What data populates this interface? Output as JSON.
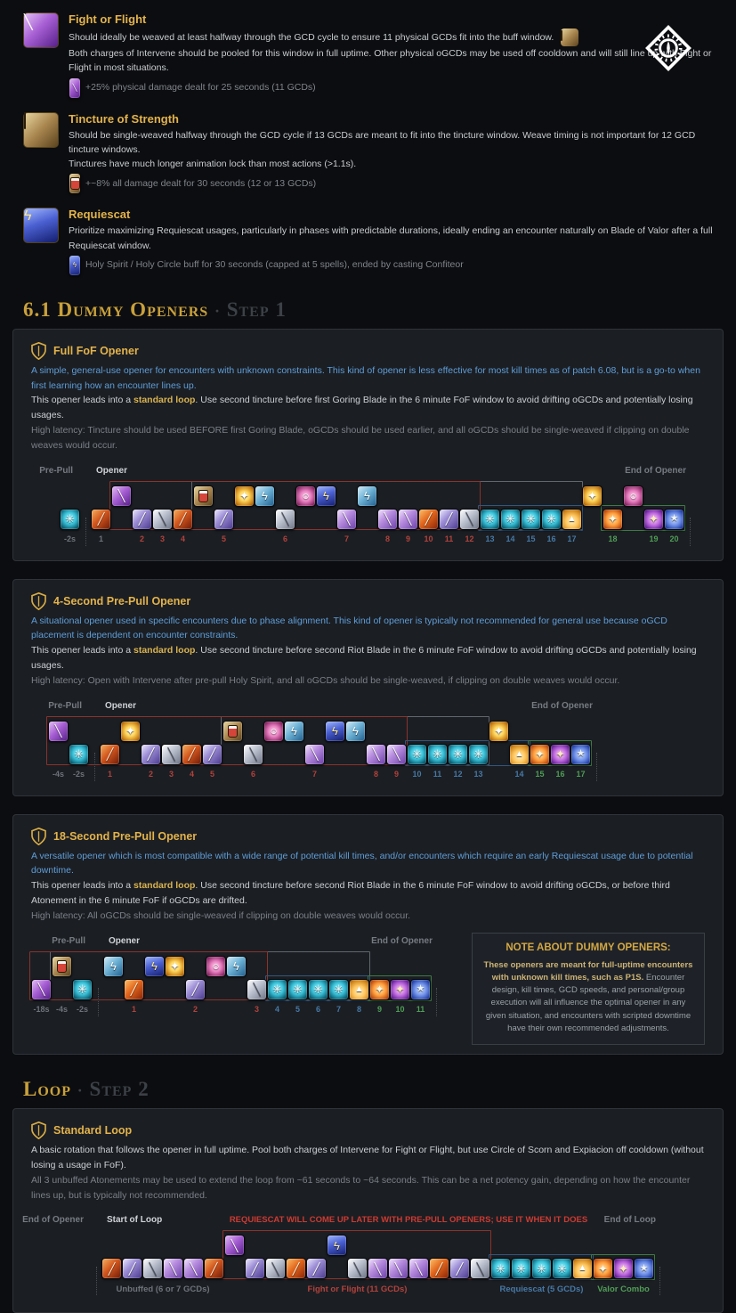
{
  "colors": {
    "red": "#b2423b",
    "blue": "#4679a6",
    "green": "#4f9e55",
    "gray": "#6e737a"
  },
  "abilities": [
    {
      "title": "Fight or Flight",
      "line1": "Should ideally be weaved at least halfway through the GCD cycle to ensure 11 physical GCDs fit into the buff window.",
      "line2": "Both charges of Intervene should be pooled for this window in full uptime. Other physical oGCDs may be used off cooldown and will still line up with Fight or Flight in most situations.",
      "buff": "+25% physical damage dealt for 25 seconds (11 GCDs)"
    },
    {
      "title": "Tincture of Strength",
      "line1": "Should be single-weaved halfway through the GCD cycle if 13 GCDs are meant to fit into the tincture window. Weave timing is not important for 12 GCD tincture windows.",
      "line2": "Tinctures have much longer animation lock than most actions (>1.1s).",
      "buff": "+~8% all damage dealt for 30 seconds (12 or 13 GCDs)"
    },
    {
      "title": "Requiescat",
      "line1": "Prioritize maximizing Requiescat usages, particularly in phases with predictable durations, ideally ending an encounter naturally on Blade of Valor after a full Requiescat window.",
      "buff": "Holy Spirit / Holy Circle buff for 30 seconds (capped at 5 spells), ended by casting Confiteor"
    }
  ],
  "sections": {
    "openers": {
      "num": "6.1 ",
      "title": "Dummy Openers",
      "sep": "·",
      "step": "Step 1"
    },
    "loop": {
      "title": "Loop",
      "sep": "·",
      "step": "Step 2"
    }
  },
  "cards": [
    {
      "title": "Full FoF Opener",
      "blue": "A simple, general-use opener for encounters with unknown constraints. This kind of opener is less effective for most kill times as of patch 6.08, but is a go-to when first learning how an encounter lines up.",
      "white_pre": "This opener leads into a ",
      "link": "standard loop",
      "white_post": ". Use second tincture before first Goring Blade in the 6 minute FoF window to avoid drifting oGCDs and potentially losing usages.",
      "gray": "High latency: Tincture should be used BEFORE first Goring Blade, oGCDs should be used earlier, and all oGCDs should be single-weaved if clipping on double weaves would occur."
    },
    {
      "title": "4-Second Pre-Pull Opener",
      "blue": "A situational opener used in specific encounters due to phase alignment. This kind of opener is typically not recommended for general use because oGCD placement is dependent on encounter constraints.",
      "white_pre": "This opener leads into a ",
      "link": "standard loop",
      "white_post": ". Use second tincture before second Riot Blade in the 6 minute FoF window to avoid drifting oGCDs and potentially losing usages.",
      "gray": "High latency: Open with Intervene after pre-pull Holy Spirit, and all oGCDs should be single-weaved, if clipping on double weaves would occur."
    },
    {
      "title": "18-Second Pre-Pull Opener",
      "blue": "A versatile opener which is most compatible with a wide range of potential kill times, and/or encounters which require an early Requiescat usage due to potential downtime.",
      "white_pre": "This opener leads into a ",
      "link": "standard loop",
      "white_post": ". Use second tincture before second Riot Blade in the 6 minute FoF window to avoid drifting oGCDs, or before third Atonement in the 6 minute FoF if oGCDs are drifted.",
      "gray": "High latency: All oGCDs should be single-weaved if clipping on double weaves would occur."
    }
  ],
  "note": {
    "title": "NOTE ABOUT DUMMY OPENERS:",
    "bold": "These openers are meant for full-uptime encounters with unknown kill times, such as P1S.",
    "rest": " Encounter design, kill times, GCD speeds, and personal/group execution will all influence the optimal opener in any given situation, and encounters with scripted downtime have their own recommended adjustments."
  },
  "loop_card": {
    "title": "Standard Loop",
    "white": "A basic rotation that follows the opener in full uptime. Pool both charges of Intervene for Fight or Flight, but use Circle of Scorn and Expiacion off cooldown (without losing a usage in FoF).",
    "gray": "All 3 unbuffed Atonements may be used to extend the loop from ~61 seconds to ~64 seconds. This can be a net potency gain, depending on how the encounter lines up, but is typically not recommended."
  },
  "timelines": [
    {
      "labels": {
        "pre": "Pre-Pull",
        "main": "Opener",
        "end": "End of Opener"
      },
      "slots": [
        [
          "g",
          "holy-spirit",
          "-2s",
          "gray"
        ],
        [
          "x"
        ],
        [
          "g",
          "fast-blade",
          "1",
          "gray"
        ],
        [
          "w",
          "fight-or-flight"
        ],
        [
          "g",
          "riot-blade",
          "2",
          "red"
        ],
        [
          "g",
          "royal-authority",
          "3",
          "red"
        ],
        [
          "g",
          "fast-blade",
          "4",
          "red"
        ],
        [
          "w",
          "tincture"
        ],
        [
          "g",
          "riot-blade",
          "5",
          "red"
        ],
        [
          "w",
          "expiacion"
        ],
        [
          "w",
          "intervene"
        ],
        [
          "g",
          "royal-authority",
          "6",
          "red"
        ],
        [
          "w",
          "circle-of-scorn"
        ],
        [
          "w",
          "requiescat"
        ],
        [
          "g",
          "atonement",
          "7",
          "red"
        ],
        [
          "w",
          "intervene"
        ],
        [
          "g",
          "atonement",
          "8",
          "red"
        ],
        [
          "g",
          "atonement",
          "9",
          "red"
        ],
        [
          "g",
          "goring-blade",
          "10",
          "red"
        ],
        [
          "g",
          "riot-blade",
          "11",
          "red"
        ],
        [
          "g",
          "royal-authority",
          "12",
          "red"
        ],
        [
          "g",
          "holy-spirit",
          "13",
          "blue"
        ],
        [
          "g",
          "holy-spirit",
          "14",
          "blue"
        ],
        [
          "g",
          "holy-spirit",
          "15",
          "blue"
        ],
        [
          "g",
          "holy-spirit",
          "16",
          "blue"
        ],
        [
          "g",
          "confiteor",
          "17",
          "blue"
        ],
        [
          "w",
          "expiacion"
        ],
        [
          "g",
          "blade-of-faith",
          "18",
          "green"
        ],
        [
          "w",
          "circle-of-scorn"
        ],
        [
          "g",
          "blade-of-truth",
          "19",
          "green"
        ],
        [
          "g",
          "blade-of-valor",
          "20",
          "green"
        ],
        [
          "x"
        ]
      ],
      "boxes": [
        {
          "from": 7,
          "to": 25,
          "color": "#61666d",
          "tall": true
        },
        {
          "from": 3,
          "to": 20,
          "color": "#8a332a",
          "tall": true
        },
        {
          "from": 21,
          "to": 25,
          "color": "#33567e",
          "tall": false
        },
        {
          "from": 27,
          "to": 30,
          "color": "#3e7a44",
          "tall": false
        }
      ]
    },
    {
      "labels": {
        "pre": "Pre-Pull",
        "main": "Opener",
        "end": "End of Opener"
      },
      "slots": [
        [
          "w",
          "fight-or-flight",
          "-4s",
          "gray"
        ],
        [
          "g",
          "holy-spirit",
          "-2s",
          "gray"
        ],
        [
          "x"
        ],
        [
          "g",
          "fast-blade",
          "1",
          "red"
        ],
        [
          "w",
          "expiacion"
        ],
        [
          "g",
          "riot-blade",
          "2",
          "red"
        ],
        [
          "g",
          "royal-authority",
          "3",
          "red"
        ],
        [
          "g",
          "fast-blade",
          "4",
          "red"
        ],
        [
          "g",
          "riot-blade",
          "5",
          "red"
        ],
        [
          "w",
          "tincture"
        ],
        [
          "g",
          "royal-authority",
          "6",
          "red"
        ],
        [
          "w",
          "circle-of-scorn"
        ],
        [
          "w",
          "intervene"
        ],
        [
          "g",
          "atonement",
          "7",
          "red"
        ],
        [
          "w",
          "requiescat"
        ],
        [
          "w",
          "intervene"
        ],
        [
          "g",
          "atonement",
          "8",
          "red"
        ],
        [
          "g",
          "atonement",
          "9",
          "red"
        ],
        [
          "g",
          "holy-spirit",
          "10",
          "blue"
        ],
        [
          "g",
          "holy-spirit",
          "11",
          "blue"
        ],
        [
          "g",
          "holy-spirit",
          "12",
          "blue"
        ],
        [
          "g",
          "holy-spirit",
          "13",
          "blue"
        ],
        [
          "w",
          "expiacion"
        ],
        [
          "g",
          "confiteor",
          "14",
          "blue"
        ],
        [
          "g",
          "blade-of-faith",
          "15",
          "green"
        ],
        [
          "g",
          "blade-of-truth",
          "16",
          "green"
        ],
        [
          "g",
          "blade-of-valor",
          "17",
          "green"
        ],
        [
          "x"
        ]
      ],
      "boxes": [
        {
          "from": 9,
          "to": 21,
          "color": "#61666d",
          "tall": true
        },
        {
          "from": 0,
          "to": 17,
          "color": "#8a332a",
          "tall": true
        },
        {
          "from": 18,
          "to": 23,
          "color": "#33567e",
          "tall": false
        },
        {
          "from": 24,
          "to": 26,
          "color": "#3e7a44",
          "tall": false
        }
      ]
    },
    {
      "labels": {
        "pre": "Pre-Pull",
        "main": "Opener",
        "end": "End of Opener"
      },
      "slots": [
        [
          "g",
          "fight-or-flight",
          "-18s",
          "gray"
        ],
        [
          "w",
          "tincture",
          "-4s",
          "gray"
        ],
        [
          "g",
          "holy-spirit",
          "-2s",
          "gray"
        ],
        [
          "x"
        ],
        [
          "w",
          "intervene"
        ],
        [
          "g",
          "goring-blade",
          "1",
          "red"
        ],
        [
          "w",
          "requiescat"
        ],
        [
          "w",
          "expiacion"
        ],
        [
          "g",
          "riot-blade",
          "2",
          "red"
        ],
        [
          "w",
          "circle-of-scorn"
        ],
        [
          "w",
          "intervene"
        ],
        [
          "g",
          "royal-authority",
          "3",
          "red"
        ],
        [
          "g",
          "holy-spirit",
          "4",
          "blue"
        ],
        [
          "g",
          "holy-spirit",
          "5",
          "blue"
        ],
        [
          "g",
          "holy-spirit",
          "6",
          "blue"
        ],
        [
          "g",
          "holy-spirit",
          "7",
          "blue"
        ],
        [
          "g",
          "confiteor",
          "8",
          "blue"
        ],
        [
          "g",
          "blade-of-faith",
          "9",
          "green"
        ],
        [
          "g",
          "blade-of-truth",
          "10",
          "green"
        ],
        [
          "g",
          "blade-of-valor",
          "11",
          "green"
        ],
        [
          "x"
        ]
      ],
      "boxes": [
        {
          "from": 1,
          "to": 16,
          "color": "#61666d",
          "tall": true
        },
        {
          "from": 0,
          "to": 11,
          "color": "#8a332a",
          "tall": true
        },
        {
          "from": 12,
          "to": 16,
          "color": "#33567e",
          "tall": false
        },
        {
          "from": 17,
          "to": 19,
          "color": "#3e7a44",
          "tall": false
        }
      ]
    },
    {
      "labels": {
        "pre": "End of Opener",
        "main": "Start of Loop",
        "end": "End of Loop"
      },
      "warning": "REQUIESCAT WILL COME UP LATER WITH PRE-PULL OPENERS; USE IT WHEN IT DOES",
      "slots": [
        [
          "x"
        ],
        [
          "g",
          "fast-blade"
        ],
        [
          "g",
          "riot-blade"
        ],
        [
          "g",
          "royal-authority"
        ],
        [
          "g",
          "atonement"
        ],
        [
          "g",
          "atonement"
        ],
        [
          "g",
          "fast-blade"
        ],
        [
          "w",
          "fight-or-flight"
        ],
        [
          "g",
          "riot-blade"
        ],
        [
          "g",
          "royal-authority"
        ],
        [
          "g",
          "goring-blade"
        ],
        [
          "g",
          "riot-blade"
        ],
        [
          "w",
          "requiescat"
        ],
        [
          "g",
          "royal-authority"
        ],
        [
          "g",
          "atonement"
        ],
        [
          "g",
          "atonement"
        ],
        [
          "g",
          "atonement"
        ],
        [
          "g",
          "goring-blade"
        ],
        [
          "g",
          "riot-blade"
        ],
        [
          "g",
          "royal-authority"
        ],
        [
          "g",
          "holy-spirit"
        ],
        [
          "g",
          "holy-spirit"
        ],
        [
          "g",
          "holy-spirit"
        ],
        [
          "g",
          "holy-spirit"
        ],
        [
          "g",
          "confiteor"
        ],
        [
          "g",
          "blade-of-faith"
        ],
        [
          "g",
          "blade-of-truth"
        ],
        [
          "g",
          "blade-of-valor"
        ],
        [
          "x"
        ]
      ],
      "boxes": [
        {
          "from": 7,
          "to": 19,
          "color": "#8a332a",
          "tall": true
        },
        {
          "from": 20,
          "to": 24,
          "color": "#33567e",
          "tall": false
        },
        {
          "from": 25,
          "to": 27,
          "color": "#3e7a44",
          "tall": false
        }
      ],
      "groups": [
        {
          "from": 1,
          "to": 6,
          "label": "Unbuffed (6 or 7 GCDs)",
          "color": "gray"
        },
        {
          "from": 7,
          "to": 19,
          "label": "Fight or Flight (11 GCDs)",
          "color": "red"
        },
        {
          "from": 20,
          "to": 24,
          "label": "Requiescat (5 GCDs)",
          "color": "blue"
        },
        {
          "from": 25,
          "to": 27,
          "label": "Valor Combo",
          "color": "green"
        }
      ]
    }
  ]
}
